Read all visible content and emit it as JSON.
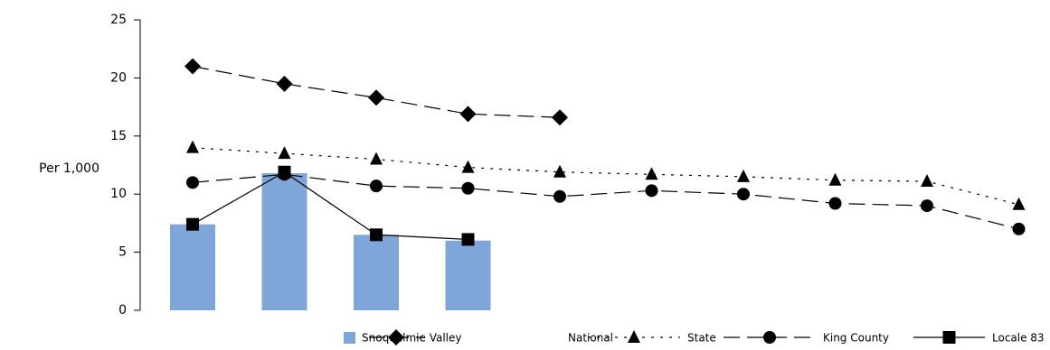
{
  "chart_data": {
    "type": "combo",
    "y_label": "Per 1,000",
    "categories": [
      null,
      null,
      null,
      null,
      null,
      null,
      null,
      null,
      null,
      null
    ],
    "ylim": [
      0,
      25
    ],
    "yticks": [
      0,
      5,
      10,
      15,
      20,
      25
    ],
    "series": [
      {
        "name": "Snoqualmie Valley",
        "type": "bar",
        "color": "#7fa6d9",
        "values": [
          7.4,
          11.8,
          6.5,
          6.0,
          null,
          null,
          null,
          null,
          null,
          null
        ]
      },
      {
        "name": "National",
        "type": "line",
        "marker": "diamond",
        "dash": "18,8",
        "color": "#000000",
        "values": [
          21.0,
          19.5,
          18.3,
          16.9,
          16.6,
          null,
          null,
          null,
          null,
          null
        ]
      },
      {
        "name": "State",
        "type": "line",
        "marker": "triangle",
        "dash": "3,7",
        "color": "#000000",
        "values": [
          14.0,
          13.5,
          13.0,
          12.3,
          11.9,
          11.7,
          11.5,
          11.2,
          11.1,
          9.1
        ]
      },
      {
        "name": "King County",
        "type": "line",
        "marker": "circle",
        "dash": "18,8",
        "color": "#000000",
        "values": [
          11.0,
          11.7,
          10.7,
          10.5,
          9.8,
          10.3,
          10.0,
          9.2,
          9.0,
          7.0
        ]
      },
      {
        "name": "Locale 83",
        "type": "line",
        "marker": "square",
        "dash": "none",
        "color": "#000000",
        "values": [
          7.4,
          11.9,
          6.5,
          6.1,
          null,
          null,
          null,
          null,
          null,
          null
        ]
      }
    ]
  }
}
